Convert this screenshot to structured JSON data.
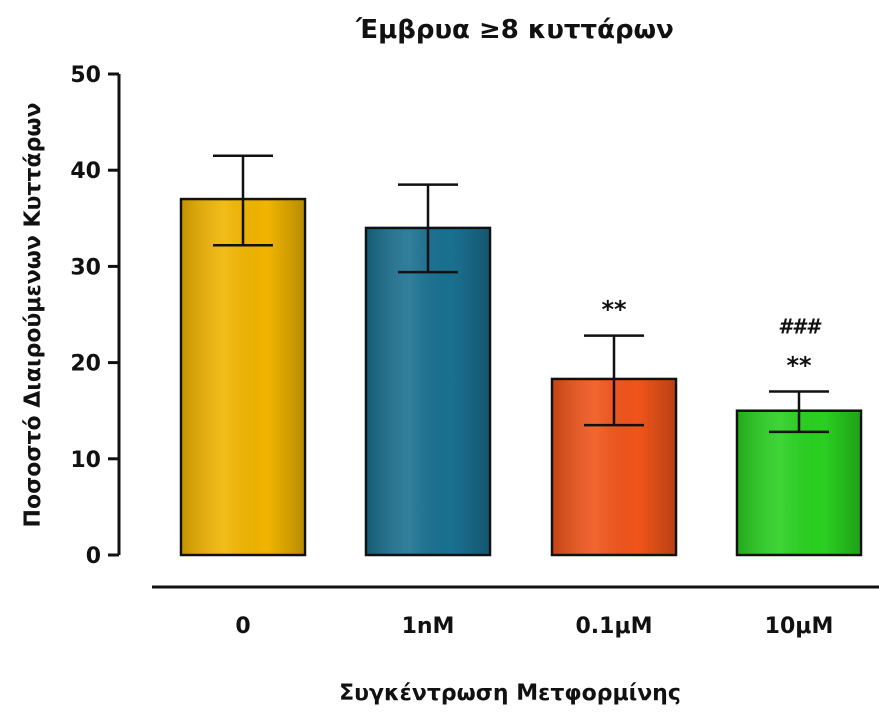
{
  "chart_data": {
    "type": "bar",
    "title": "Έμβρυα ≥8 κυττάρων",
    "xlabel": "Συγκέντρωση Μετφορμίνης",
    "ylabel": "Ποσοστό Διαιρούμενων Κυττάρων",
    "categories": [
      "0",
      "1nM",
      "0.1μM",
      "10μM"
    ],
    "values": [
      37,
      34,
      18.3,
      15
    ],
    "error_upper": [
      41.5,
      38.5,
      22.8,
      17
    ],
    "error_lower": [
      32.2,
      29.4,
      13.5,
      12.8
    ],
    "colors": [
      "#f0b400",
      "#1a7090",
      "#f0541a",
      "#2ad020"
    ],
    "annotations": [
      [
        "**"
      ],
      [
        "###",
        "**"
      ]
    ],
    "annotation_categories": [
      2,
      3
    ],
    "ylim": [
      0,
      50
    ],
    "yticks": [
      0,
      10,
      20,
      30,
      40,
      50
    ],
    "grid": false,
    "legend": false
  }
}
